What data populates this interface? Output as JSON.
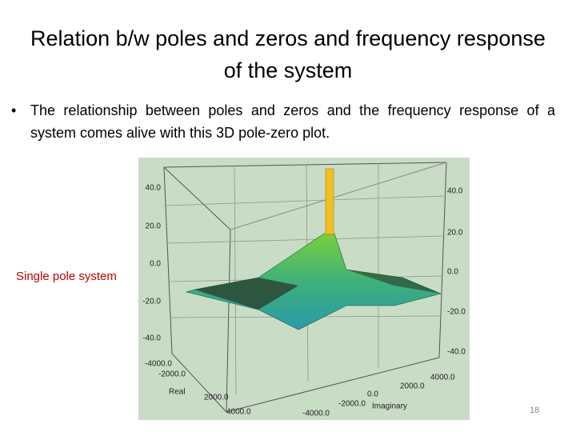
{
  "slide": {
    "title": "Relation b/w poles and zeros and frequency response of the system",
    "bullets": [
      "The relationship between poles and zeros and the frequency response of a system comes alive with this 3D pole-zero plot."
    ],
    "caption": "Single pole system",
    "figure": {
      "z_labels_left": [
        "40.0",
        "20.0",
        "0.0",
        "-20.0",
        "-40.0"
      ],
      "z_labels_right": [
        "40.0",
        "20.0",
        "0.0",
        "-20.0",
        "-40.0"
      ],
      "real_labels": [
        "-4000.0",
        "-2000.0",
        "2000.0",
        "4000.0"
      ],
      "real_axis_label": "Real",
      "imag_labels": [
        "4000.0",
        "2000.0",
        "0.0",
        "-2000.0",
        "-4000.0"
      ],
      "imag_axis_label": "Imaginary"
    },
    "page_number": "18"
  }
}
